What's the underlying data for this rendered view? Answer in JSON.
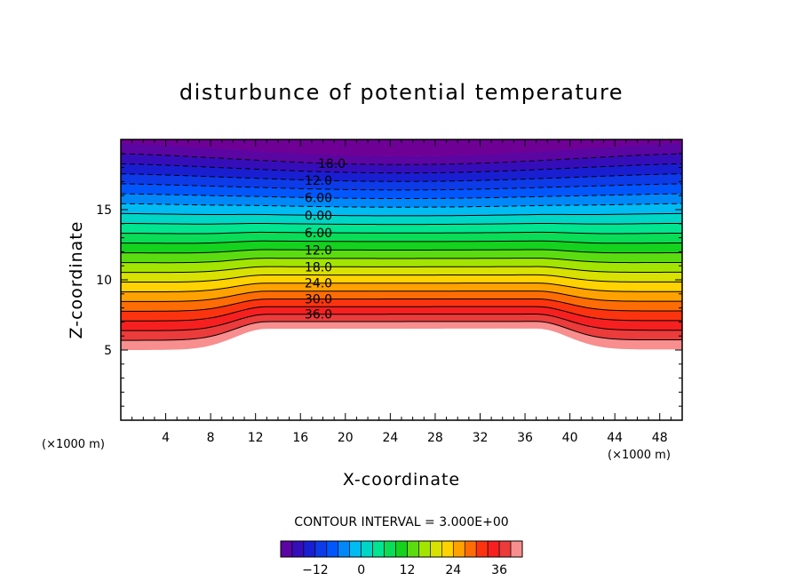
{
  "chart_data": {
    "type": "heatmap",
    "title": "disturbunce of potential temperature",
    "xlabel": "X-coordinate",
    "ylabel": "Z-coordinate",
    "x_unit": "(×1000 m)",
    "z_unit": "(×1000 m)",
    "xlim": [
      0,
      50
    ],
    "ylim": [
      0,
      20
    ],
    "x_ticks": [
      4,
      8,
      12,
      16,
      20,
      24,
      28,
      32,
      36,
      40,
      44,
      48
    ],
    "y_ticks": [
      5,
      10,
      15
    ],
    "contour_interval_text": "CONTOUR INTERVAL = 3.000E+00",
    "contour_labels": [
      "18.0",
      "12.0",
      "6.00",
      "0.00",
      "6.00",
      "12.0",
      "18.0",
      "24.0",
      "30.0",
      "36.0"
    ],
    "colorbar": {
      "min": -21,
      "max": 42,
      "ticks": [
        -12,
        0,
        12,
        24,
        36
      ]
    },
    "field": {
      "surface_height": 5.0,
      "surface_height_hill": 6.5,
      "hill_x_range": [
        13,
        37
      ],
      "value_at_bottom": 42,
      "value_at_top": -21
    }
  }
}
